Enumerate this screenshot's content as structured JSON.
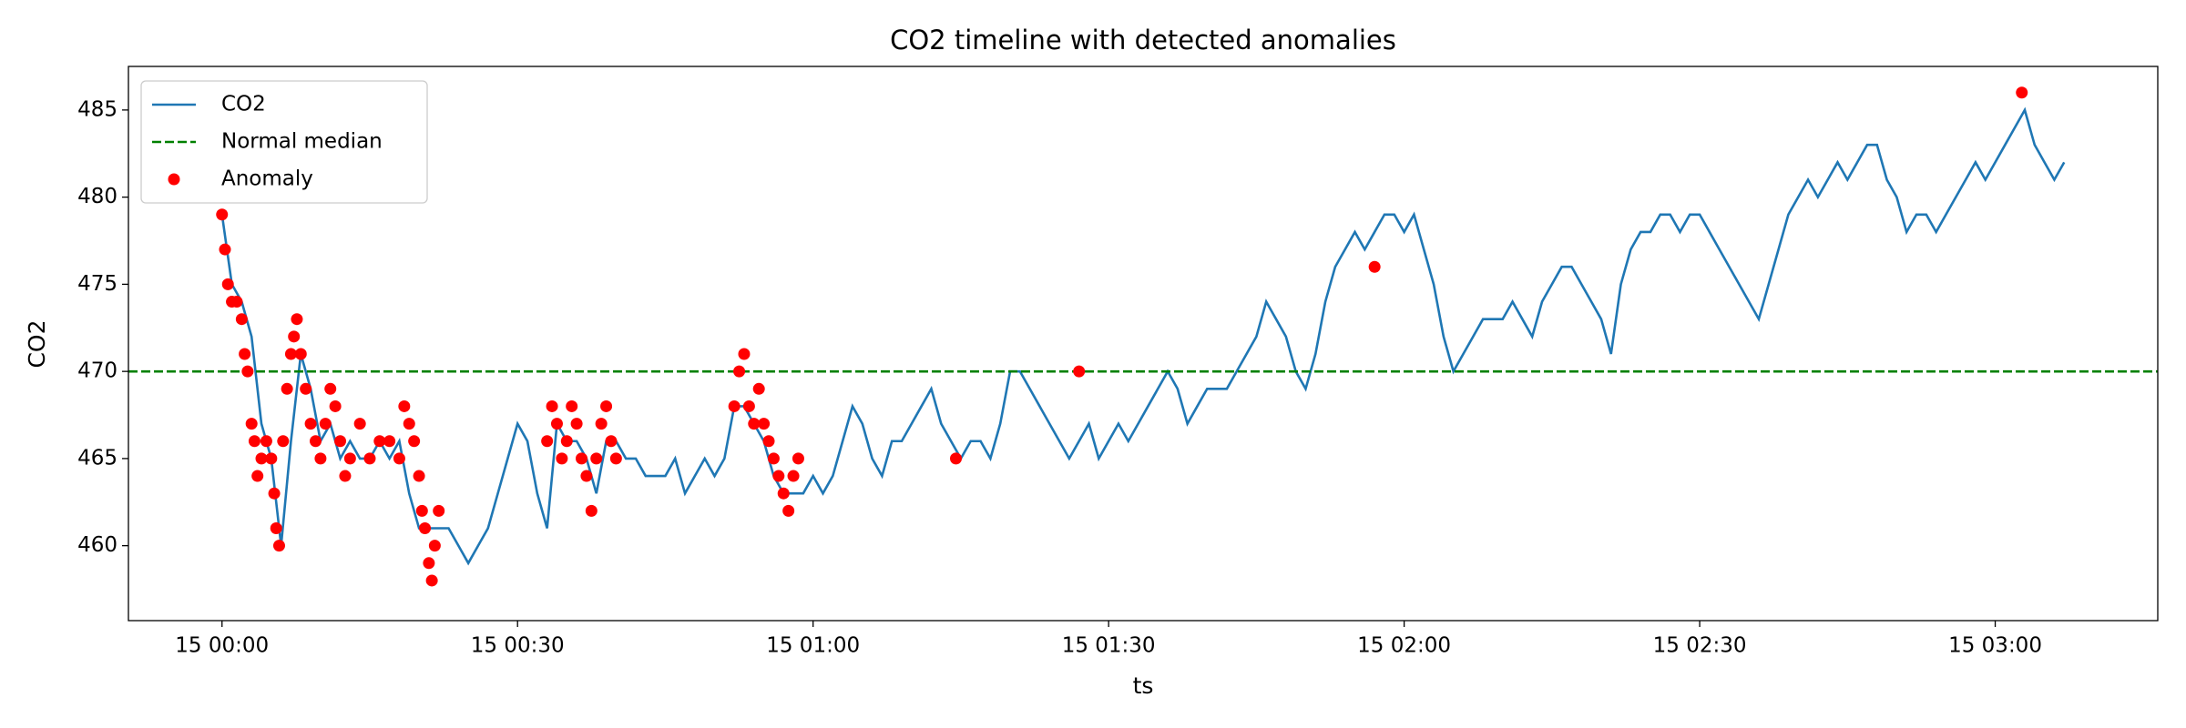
{
  "chart_data": {
    "type": "line",
    "title": "CO2 timeline with detected anomalies",
    "xlabel": "ts",
    "ylabel": "CO2",
    "x": [
      0,
      1,
      2,
      3,
      4,
      5,
      6,
      7,
      8,
      9,
      10,
      11,
      12,
      13,
      14,
      15,
      16,
      17,
      18,
      19,
      20,
      21,
      22,
      23,
      24,
      25,
      26,
      27,
      28,
      29,
      30,
      31,
      32,
      33,
      34,
      35,
      36,
      37,
      38,
      39,
      40,
      41,
      42,
      43,
      44,
      45,
      46,
      47,
      48,
      49,
      50,
      51,
      52,
      53,
      54,
      55,
      56,
      57,
      58,
      59,
      60,
      61,
      62,
      63,
      64,
      65,
      66,
      67,
      68,
      69,
      70,
      71,
      72,
      73,
      74,
      75,
      76,
      77,
      78,
      79,
      80,
      81,
      82,
      83,
      84,
      85,
      86,
      87,
      88,
      89,
      90,
      91,
      92,
      93,
      94,
      95,
      96,
      97,
      98,
      99,
      100,
      101,
      102,
      103,
      104,
      105,
      106,
      107,
      108,
      109,
      110,
      111,
      112,
      113,
      114,
      115,
      116,
      117,
      118,
      119,
      120,
      121,
      122,
      123,
      124,
      125,
      126,
      127,
      128,
      129,
      130,
      131,
      132,
      133,
      134,
      135,
      136,
      137,
      138,
      139,
      140,
      141,
      142,
      143,
      144,
      145,
      146,
      147,
      148,
      149,
      150,
      151,
      152,
      153,
      154,
      155,
      156,
      157,
      158,
      159,
      160,
      161,
      162,
      163,
      164,
      165,
      166,
      167,
      168,
      169,
      170,
      171,
      172,
      173,
      174,
      175,
      176,
      177,
      178,
      179,
      180,
      181,
      182,
      183,
      184,
      185,
      186,
      187
    ],
    "series": [
      {
        "name": "CO2",
        "color": "#1f77b4",
        "values": [
          479,
          475,
          474,
          472,
          467,
          465,
          460,
          466,
          471,
          469,
          466,
          467,
          465,
          466,
          465,
          465,
          466,
          465,
          466,
          463,
          461,
          461,
          461,
          461,
          460,
          459,
          460,
          461,
          463,
          465,
          467,
          466,
          463,
          461,
          467,
          466,
          466,
          465,
          463,
          466,
          466,
          465,
          465,
          464,
          464,
          464,
          465,
          463,
          464,
          465,
          464,
          465,
          468,
          468,
          467,
          466,
          464,
          463,
          463,
          463,
          464,
          463,
          464,
          466,
          468,
          467,
          465,
          464,
          466,
          466,
          467,
          468,
          469,
          467,
          466,
          465,
          466,
          466,
          465,
          467,
          470,
          470,
          469,
          468,
          467,
          466,
          465,
          466,
          467,
          465,
          466,
          467,
          466,
          467,
          468,
          469,
          470,
          469,
          467,
          468,
          469,
          469,
          469,
          470,
          471,
          472,
          474,
          473,
          472,
          470,
          469,
          471,
          474,
          476,
          477,
          478,
          477,
          478,
          479,
          479,
          478,
          479,
          477,
          475,
          472,
          470,
          471,
          472,
          473,
          473,
          473,
          474,
          473,
          472,
          474,
          475,
          476,
          476,
          475,
          474,
          473,
          471,
          475,
          477,
          478,
          478,
          479,
          479,
          478,
          479,
          479,
          478,
          477,
          476,
          475,
          474,
          473,
          475,
          477,
          479,
          480,
          481,
          480,
          481,
          482,
          481,
          482,
          483,
          483,
          481,
          480,
          478,
          479,
          479,
          478,
          479,
          480,
          481,
          482,
          481,
          482,
          483,
          484,
          485,
          483,
          482,
          481,
          482
        ]
      }
    ],
    "median": {
      "name": "Normal median",
      "value": 470,
      "color": "#008000"
    },
    "anomalies": {
      "name": "Anomaly",
      "color": "#ff0000",
      "x": [
        0,
        0.3,
        0.6,
        1,
        1.5,
        2,
        2.3,
        2.6,
        3,
        3.3,
        3.6,
        4,
        4.5,
        5,
        5.3,
        5.5,
        5.8,
        6.2,
        6.6,
        7,
        7.3,
        7.6,
        8,
        8.5,
        9,
        9.5,
        10,
        10.5,
        11,
        11.5,
        12,
        12.5,
        13,
        14,
        15,
        16,
        17,
        18,
        18.5,
        19,
        19.5,
        20,
        20.3,
        20.6,
        21,
        21.3,
        21.6,
        22,
        33,
        33.5,
        34,
        34.5,
        35,
        35.5,
        36,
        36.5,
        37,
        37.5,
        38,
        38.5,
        39,
        39.5,
        40,
        52,
        52.5,
        53,
        53.5,
        54,
        54.5,
        55,
        55.5,
        56,
        56.5,
        57,
        57.5,
        58,
        58.5,
        74.5,
        87,
        117,
        182.7
      ],
      "values": [
        479,
        477,
        475,
        474,
        474,
        473,
        471,
        470,
        467,
        466,
        464,
        465,
        466,
        465,
        463,
        461,
        460,
        466,
        469,
        471,
        472,
        473,
        471,
        469,
        467,
        466,
        465,
        467,
        469,
        468,
        466,
        464,
        465,
        467,
        465,
        466,
        466,
        465,
        468,
        467,
        466,
        464,
        462,
        461,
        459,
        458,
        460,
        462,
        466,
        468,
        467,
        465,
        466,
        468,
        467,
        465,
        464,
        462,
        465,
        467,
        468,
        466,
        465,
        468,
        470,
        471,
        468,
        467,
        469,
        467,
        466,
        465,
        464,
        463,
        462,
        464,
        465,
        465,
        470,
        476,
        486
      ]
    },
    "xlim": [
      -9.5,
      196.5
    ],
    "ylim": [
      455.7,
      487.5
    ],
    "xticks": [
      {
        "value": 0,
        "label": "15 00:00"
      },
      {
        "value": 30,
        "label": "15 00:30"
      },
      {
        "value": 60,
        "label": "15 01:00"
      },
      {
        "value": 90,
        "label": "15 01:30"
      },
      {
        "value": 120,
        "label": "15 02:00"
      },
      {
        "value": 150,
        "label": "15 02:30"
      },
      {
        "value": 180,
        "label": "15 03:00"
      }
    ],
    "yticks": [
      460,
      465,
      470,
      475,
      480,
      485
    ],
    "legend": "upper left"
  }
}
